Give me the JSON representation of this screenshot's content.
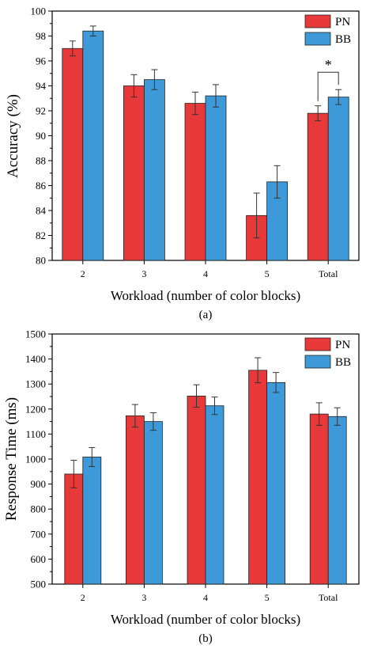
{
  "colors": {
    "PN": "#e8393a",
    "BB": "#3d99d7",
    "axis": "#000000"
  },
  "chart_data": [
    {
      "type": "bar",
      "panel_label": "(a)",
      "xlabel": "Workload (number of color blocks)",
      "ylabel": "Accuracy (%)",
      "ylim": [
        80,
        100
      ],
      "yticks": [
        80,
        82,
        84,
        86,
        88,
        90,
        92,
        94,
        96,
        98,
        100
      ],
      "categories": [
        "2",
        "3",
        "4",
        "5",
        "Total"
      ],
      "legend_position": "top-right",
      "series": [
        {
          "name": "PN",
          "values": [
            97.0,
            94.0,
            92.6,
            83.6,
            91.8
          ],
          "errors": [
            0.6,
            0.9,
            0.9,
            1.8,
            0.6
          ]
        },
        {
          "name": "BB",
          "values": [
            98.4,
            94.5,
            93.2,
            86.3,
            93.1
          ],
          "errors": [
            0.4,
            0.8,
            0.9,
            1.3,
            0.6
          ]
        }
      ],
      "annotation": {
        "text": "*",
        "category": "Total"
      }
    },
    {
      "type": "bar",
      "panel_label": "(b)",
      "xlabel": "Workload (number of color blocks)",
      "ylabel": "Response Time (ms)",
      "ylim": [
        500,
        1500
      ],
      "yticks": [
        500,
        600,
        700,
        800,
        900,
        1000,
        1100,
        1200,
        1300,
        1400,
        1500
      ],
      "categories": [
        "2",
        "3",
        "4",
        "5",
        "Total"
      ],
      "legend_position": "top-right",
      "series": [
        {
          "name": "PN",
          "values": [
            940,
            1173,
            1252,
            1355,
            1180
          ],
          "errors": [
            55,
            45,
            45,
            50,
            45
          ]
        },
        {
          "name": "BB",
          "values": [
            1008,
            1150,
            1213,
            1306,
            1170
          ],
          "errors": [
            38,
            35,
            35,
            40,
            35
          ]
        }
      ]
    }
  ]
}
